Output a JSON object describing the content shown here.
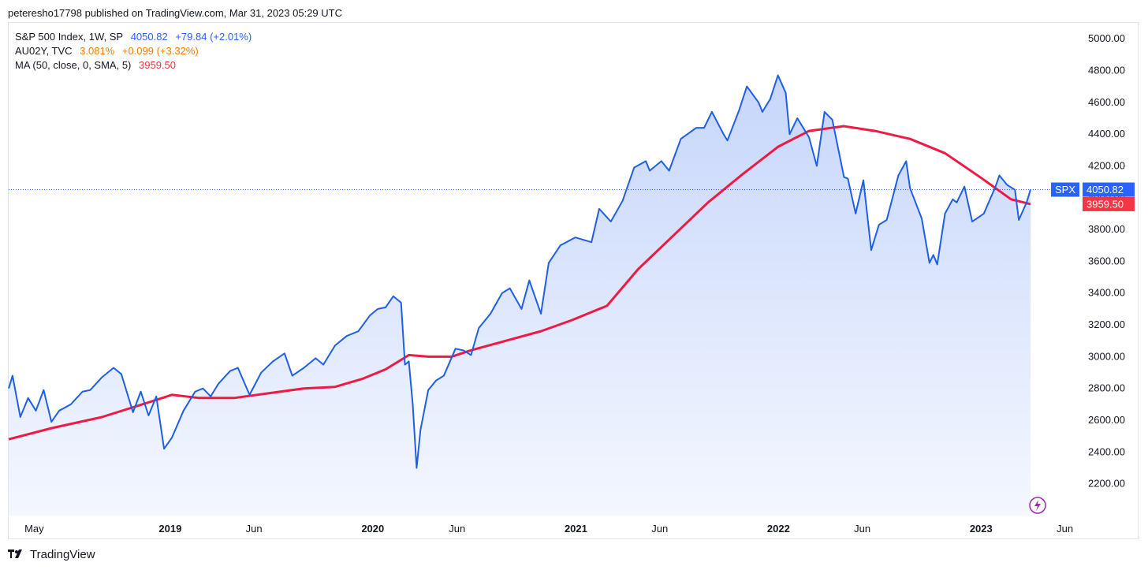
{
  "header": {
    "published_text": "peteresho17798 published on TradingView.com, Mar 31, 2023 05:29 UTC"
  },
  "legend": [
    {
      "name": "S&P 500 Index, 1W, SP",
      "value": "4050.82",
      "change": "+79.84 (+2.01%)",
      "color": "#2962ff"
    },
    {
      "name": "AU02Y, TVC",
      "value": "3.081%",
      "change": "+0.099 (+3.32%)",
      "color": "#f57c00"
    },
    {
      "name": "MA (50, close, 0, SMA, 5)",
      "value": "3959.50",
      "change": "",
      "color": "#f23645"
    }
  ],
  "price_tags": {
    "spx_symbol": "SPX",
    "spx_value": "4050.82",
    "ma_value": "3959.50"
  },
  "footer": {
    "brand": "TradingView"
  },
  "colors": {
    "price_line": "#1e5fe6",
    "ma_line": "#ef1a44",
    "area_top": "#c6d6fb",
    "area_bottom": "#f4f7fe",
    "spx_tag": "#2962ff",
    "ma_tag": "#f23645"
  },
  "chart_data": {
    "type": "area",
    "title": "",
    "xlabel": "",
    "ylabel": "",
    "ylim": [
      2000,
      5100
    ],
    "yticks": [
      "2200.00",
      "2400.00",
      "2600.00",
      "2800.00",
      "3000.00",
      "3200.00",
      "3400.00",
      "3600.00",
      "3800.00",
      "4000.00",
      "4200.00",
      "4400.00",
      "4600.00",
      "4800.00",
      "5000.00"
    ],
    "xlim": [
      "2018-03-16",
      "2023-06-30"
    ],
    "xticks": [
      {
        "date": "2018-05-01",
        "label": "May"
      },
      {
        "date": "2019-01-01",
        "label": "2019"
      },
      {
        "date": "2019-06-01",
        "label": "Jun"
      },
      {
        "date": "2020-01-01",
        "label": "2020"
      },
      {
        "date": "2020-06-01",
        "label": "Jun"
      },
      {
        "date": "2021-01-01",
        "label": "2021"
      },
      {
        "date": "2021-06-01",
        "label": "Jun"
      },
      {
        "date": "2022-01-01",
        "label": "2022"
      },
      {
        "date": "2022-06-01",
        "label": "Jun"
      },
      {
        "date": "2023-01-01",
        "label": "2023"
      },
      {
        "date": "2023-06-01",
        "label": "Jun"
      }
    ],
    "reference_line": 4050.82,
    "series": [
      {
        "name": "S&P 500 Index, 1W, SP",
        "points": [
          [
            "2018-03-16",
            2800
          ],
          [
            "2018-03-23",
            2880
          ],
          [
            "2018-04-06",
            2620
          ],
          [
            "2018-04-20",
            2740
          ],
          [
            "2018-05-04",
            2660
          ],
          [
            "2018-05-18",
            2790
          ],
          [
            "2018-06-01",
            2590
          ],
          [
            "2018-06-15",
            2660
          ],
          [
            "2018-07-06",
            2700
          ],
          [
            "2018-07-27",
            2780
          ],
          [
            "2018-08-10",
            2790
          ],
          [
            "2018-08-31",
            2870
          ],
          [
            "2018-09-21",
            2930
          ],
          [
            "2018-10-05",
            2890
          ],
          [
            "2018-10-26",
            2650
          ],
          [
            "2018-11-09",
            2780
          ],
          [
            "2018-11-23",
            2630
          ],
          [
            "2018-12-07",
            2750
          ],
          [
            "2018-12-21",
            2420
          ],
          [
            "2019-01-04",
            2490
          ],
          [
            "2019-01-25",
            2660
          ],
          [
            "2019-02-15",
            2780
          ],
          [
            "2019-03-01",
            2800
          ],
          [
            "2019-03-15",
            2750
          ],
          [
            "2019-03-29",
            2830
          ],
          [
            "2019-04-19",
            2910
          ],
          [
            "2019-05-03",
            2930
          ],
          [
            "2019-05-24",
            2760
          ],
          [
            "2019-06-14",
            2900
          ],
          [
            "2019-07-05",
            2970
          ],
          [
            "2019-07-26",
            3020
          ],
          [
            "2019-08-09",
            2880
          ],
          [
            "2019-08-30",
            2930
          ],
          [
            "2019-09-20",
            2990
          ],
          [
            "2019-10-04",
            2950
          ],
          [
            "2019-10-25",
            3070
          ],
          [
            "2019-11-15",
            3130
          ],
          [
            "2019-12-06",
            3160
          ],
          [
            "2019-12-27",
            3260
          ],
          [
            "2020-01-10",
            3300
          ],
          [
            "2020-01-24",
            3310
          ],
          [
            "2020-02-07",
            3380
          ],
          [
            "2020-02-21",
            3340
          ],
          [
            "2020-02-28",
            2950
          ],
          [
            "2020-03-06",
            2970
          ],
          [
            "2020-03-13",
            2700
          ],
          [
            "2020-03-20",
            2300
          ],
          [
            "2020-03-27",
            2540
          ],
          [
            "2020-04-10",
            2790
          ],
          [
            "2020-04-24",
            2850
          ],
          [
            "2020-05-08",
            2880
          ],
          [
            "2020-05-29",
            3050
          ],
          [
            "2020-06-12",
            3040
          ],
          [
            "2020-06-26",
            3010
          ],
          [
            "2020-07-10",
            3180
          ],
          [
            "2020-07-31",
            3270
          ],
          [
            "2020-08-21",
            3400
          ],
          [
            "2020-09-04",
            3430
          ],
          [
            "2020-09-25",
            3300
          ],
          [
            "2020-10-09",
            3480
          ],
          [
            "2020-10-30",
            3270
          ],
          [
            "2020-11-13",
            3590
          ],
          [
            "2020-12-04",
            3700
          ],
          [
            "2020-12-31",
            3750
          ],
          [
            "2021-01-29",
            3720
          ],
          [
            "2021-02-12",
            3930
          ],
          [
            "2021-03-05",
            3850
          ],
          [
            "2021-03-26",
            3980
          ],
          [
            "2021-04-16",
            4190
          ],
          [
            "2021-05-07",
            4230
          ],
          [
            "2021-05-14",
            4170
          ],
          [
            "2021-06-04",
            4230
          ],
          [
            "2021-06-18",
            4170
          ],
          [
            "2021-07-09",
            4370
          ],
          [
            "2021-08-06",
            4440
          ],
          [
            "2021-08-20",
            4440
          ],
          [
            "2021-09-03",
            4540
          ],
          [
            "2021-09-24",
            4400
          ],
          [
            "2021-10-01",
            4360
          ],
          [
            "2021-10-22",
            4550
          ],
          [
            "2021-11-05",
            4700
          ],
          [
            "2021-11-26",
            4600
          ],
          [
            "2021-12-03",
            4540
          ],
          [
            "2021-12-17",
            4620
          ],
          [
            "2021-12-31",
            4770
          ],
          [
            "2022-01-14",
            4660
          ],
          [
            "2022-01-21",
            4400
          ],
          [
            "2022-02-04",
            4500
          ],
          [
            "2022-02-25",
            4380
          ],
          [
            "2022-03-11",
            4200
          ],
          [
            "2022-03-25",
            4540
          ],
          [
            "2022-04-08",
            4490
          ],
          [
            "2022-04-29",
            4130
          ],
          [
            "2022-05-06",
            4120
          ],
          [
            "2022-05-20",
            3900
          ],
          [
            "2022-06-03",
            4110
          ],
          [
            "2022-06-17",
            3670
          ],
          [
            "2022-07-01",
            3830
          ],
          [
            "2022-07-15",
            3860
          ],
          [
            "2022-08-05",
            4140
          ],
          [
            "2022-08-19",
            4230
          ],
          [
            "2022-08-26",
            4060
          ],
          [
            "2022-09-16",
            3870
          ],
          [
            "2022-09-30",
            3590
          ],
          [
            "2022-10-07",
            3640
          ],
          [
            "2022-10-14",
            3580
          ],
          [
            "2022-10-28",
            3900
          ],
          [
            "2022-11-11",
            3990
          ],
          [
            "2022-11-18",
            3970
          ],
          [
            "2022-12-02",
            4070
          ],
          [
            "2022-12-16",
            3850
          ],
          [
            "2023-01-06",
            3900
          ],
          [
            "2023-01-27",
            4070
          ],
          [
            "2023-02-03",
            4140
          ],
          [
            "2023-02-17",
            4080
          ],
          [
            "2023-03-03",
            4050
          ],
          [
            "2023-03-10",
            3860
          ],
          [
            "2023-03-24",
            3970
          ],
          [
            "2023-03-31",
            4050.82
          ]
        ]
      },
      {
        "name": "MA (50, close, 0, SMA, 5)",
        "points": [
          [
            "2018-03-16",
            2480
          ],
          [
            "2018-06-01",
            2550
          ],
          [
            "2018-08-31",
            2620
          ],
          [
            "2018-11-30",
            2720
          ],
          [
            "2019-01-04",
            2760
          ],
          [
            "2019-02-22",
            2740
          ],
          [
            "2019-04-26",
            2740
          ],
          [
            "2019-06-28",
            2770
          ],
          [
            "2019-08-30",
            2800
          ],
          [
            "2019-10-25",
            2810
          ],
          [
            "2019-12-13",
            2860
          ],
          [
            "2020-01-24",
            2920
          ],
          [
            "2020-03-06",
            3010
          ],
          [
            "2020-04-10",
            3000
          ],
          [
            "2020-05-22",
            3000
          ],
          [
            "2020-06-26",
            3040
          ],
          [
            "2020-08-28",
            3100
          ],
          [
            "2020-10-30",
            3160
          ],
          [
            "2020-12-25",
            3230
          ],
          [
            "2021-02-26",
            3320
          ],
          [
            "2021-04-23",
            3550
          ],
          [
            "2021-06-25",
            3760
          ],
          [
            "2021-08-27",
            3970
          ],
          [
            "2021-10-29",
            4150
          ],
          [
            "2021-12-31",
            4320
          ],
          [
            "2022-02-25",
            4420
          ],
          [
            "2022-04-29",
            4450
          ],
          [
            "2022-06-24",
            4420
          ],
          [
            "2022-08-26",
            4370
          ],
          [
            "2022-10-28",
            4280
          ],
          [
            "2022-12-30",
            4130
          ],
          [
            "2023-02-24",
            3990
          ],
          [
            "2023-03-31",
            3959.5
          ]
        ]
      }
    ]
  }
}
